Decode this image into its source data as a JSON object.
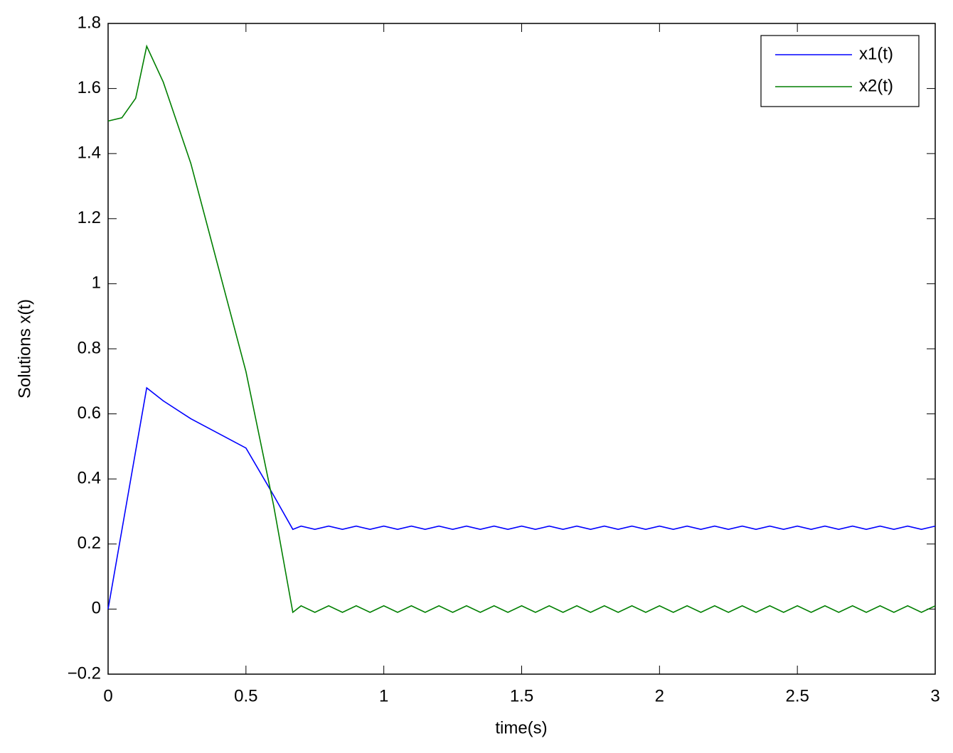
{
  "chart_data": {
    "type": "line",
    "xlabel": "time(s)",
    "ylabel": "Solutions x(t)",
    "x": [
      0,
      0.05,
      0.1,
      0.14,
      0.2,
      0.3,
      0.4,
      0.5,
      0.6,
      0.67,
      0.7,
      0.75,
      0.8,
      0.85,
      0.9,
      0.95,
      1.0,
      1.05,
      1.1,
      1.15,
      1.2,
      1.25,
      1.3,
      1.35,
      1.4,
      1.45,
      1.5,
      1.55,
      1.6,
      1.65,
      1.7,
      1.75,
      1.8,
      1.85,
      1.9,
      1.95,
      2.0,
      2.05,
      2.1,
      2.15,
      2.2,
      2.25,
      2.3,
      2.35,
      2.4,
      2.45,
      2.5,
      2.55,
      2.6,
      2.65,
      2.7,
      2.75,
      2.8,
      2.85,
      2.9,
      2.95,
      3.0
    ],
    "series": [
      {
        "name": "x1(t)",
        "color": "#0000ff",
        "values": [
          0,
          0.243,
          0.486,
          0.68,
          0.64,
          0.585,
          0.54,
          0.495,
          0.35,
          0.245,
          0.255,
          0.245,
          0.255,
          0.245,
          0.255,
          0.245,
          0.255,
          0.245,
          0.255,
          0.245,
          0.255,
          0.245,
          0.255,
          0.245,
          0.255,
          0.245,
          0.255,
          0.245,
          0.255,
          0.245,
          0.255,
          0.245,
          0.255,
          0.245,
          0.255,
          0.245,
          0.255,
          0.245,
          0.255,
          0.245,
          0.255,
          0.245,
          0.255,
          0.245,
          0.255,
          0.245,
          0.255,
          0.245,
          0.255,
          0.245,
          0.255,
          0.245,
          0.255,
          0.245,
          0.255,
          0.245,
          0.255
        ]
      },
      {
        "name": "x2(t)",
        "color": "#007f00",
        "values": [
          1.5,
          1.51,
          1.57,
          1.73,
          1.62,
          1.37,
          1.05,
          0.73,
          0.32,
          -0.01,
          0.01,
          -0.01,
          0.01,
          -0.01,
          0.01,
          -0.01,
          0.01,
          -0.01,
          0.01,
          -0.01,
          0.01,
          -0.01,
          0.01,
          -0.01,
          0.01,
          -0.01,
          0.01,
          -0.01,
          0.01,
          -0.01,
          0.01,
          -0.01,
          0.01,
          -0.01,
          0.01,
          -0.01,
          0.01,
          -0.01,
          0.01,
          -0.01,
          0.01,
          -0.01,
          0.01,
          -0.01,
          0.01,
          -0.01,
          0.01,
          -0.01,
          0.01,
          -0.01,
          0.01,
          -0.01,
          0.01,
          -0.01,
          0.01,
          -0.01,
          0.01
        ]
      }
    ],
    "xlim": [
      0,
      3
    ],
    "xticks": [
      0,
      0.5,
      1,
      1.5,
      2,
      2.5,
      3
    ],
    "ylim": [
      -0.2,
      1.8
    ],
    "yticks": [
      {
        "value": -0.2,
        "label": "−0.2"
      },
      0,
      0.2,
      0.4,
      0.6,
      0.8,
      1,
      1.2,
      1.4,
      1.6,
      1.8
    ],
    "grid": false,
    "legend": "upper right"
  }
}
